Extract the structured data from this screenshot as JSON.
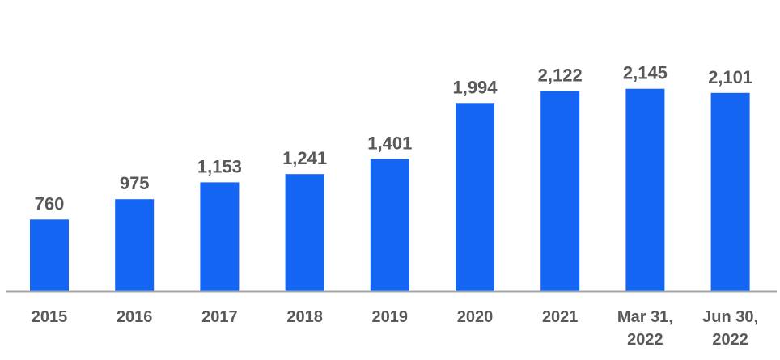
{
  "chart_data": {
    "type": "bar",
    "categories": [
      "2015",
      "2016",
      "2017",
      "2018",
      "2019",
      "2020",
      "2021",
      "Mar 31, 2022",
      "Jun 30, 2022"
    ],
    "category_lines": [
      [
        "2015"
      ],
      [
        "2016"
      ],
      [
        "2017"
      ],
      [
        "2018"
      ],
      [
        "2019"
      ],
      [
        "2020"
      ],
      [
        "2021"
      ],
      [
        "Mar 31,",
        "2022"
      ],
      [
        "Jun 30,",
        "2022"
      ]
    ],
    "values": [
      760,
      975,
      1153,
      1241,
      1401,
      1994,
      2122,
      2145,
      2101
    ],
    "data_labels": [
      "760",
      "975",
      "1,153",
      "1,241",
      "1,401",
      "1,994",
      "2,122",
      "2,145",
      "2,101"
    ],
    "title": "",
    "xlabel": "",
    "ylabel": "",
    "ylim": [
      0,
      2600
    ],
    "grid": false,
    "legend": "none",
    "colors": {
      "bar": "#1565F5",
      "label": "#595959",
      "axis": "#A6A6A6"
    }
  }
}
